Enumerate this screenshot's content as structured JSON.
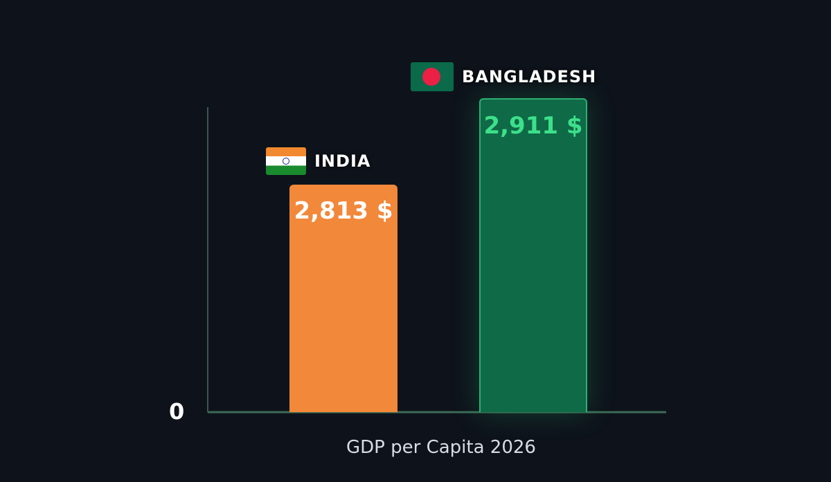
{
  "chart_data": {
    "type": "bar",
    "categories": [
      "INDIA",
      "BANGLADESH"
    ],
    "values": [
      2813,
      2911
    ],
    "data_labels": [
      "2,813 $",
      "2,911 $"
    ],
    "flags": [
      "india-flag-icon",
      "bangladesh-flag-icon"
    ],
    "colors": [
      "#f2883a",
      "#0f6a47"
    ],
    "label_colors": [
      "#ffffff",
      "#3de08a"
    ],
    "xlabel": "GDP per Capita 2026",
    "ylabel": "",
    "y_tick_labels": [
      "0"
    ],
    "grid": false,
    "legend": "none"
  }
}
